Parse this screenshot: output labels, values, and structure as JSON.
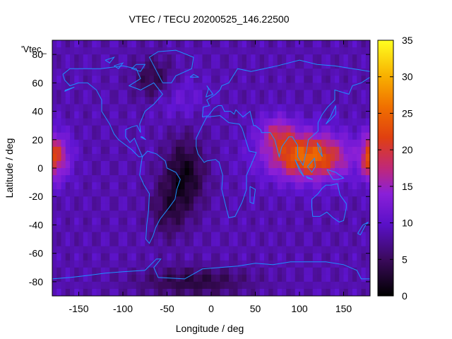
{
  "chart_data": {
    "type": "heatmap",
    "title": "VTEC / TECU 20200525_146.22500",
    "xlabel": "Longitude / deg",
    "ylabel": "Latitude / deg",
    "xlim": [
      -180,
      180
    ],
    "ylim": [
      -90,
      90
    ],
    "x_ticks": [
      -150,
      -100,
      -50,
      0,
      50,
      100,
      150
    ],
    "y_ticks": [
      -80,
      -60,
      -40,
      -20,
      0,
      20,
      40,
      60,
      80
    ],
    "colorbar": {
      "range": [
        0,
        35
      ],
      "ticks": [
        0,
        5,
        10,
        15,
        20,
        25,
        30,
        35
      ]
    },
    "legend": {
      "label": "'Vtec_"
    },
    "annotation_labels": [
      "-80",
      "-60",
      "-40",
      "-20",
      "0",
      "20",
      "40",
      "60",
      "80"
    ],
    "grid": false,
    "description_of_field": "Vertical total electron content map with a high-TEC band over Asia/Indian Ocean (~20-27 TECU) and western Pacific edge, low values (0-5) over South America / Atlantic and North America."
  }
}
